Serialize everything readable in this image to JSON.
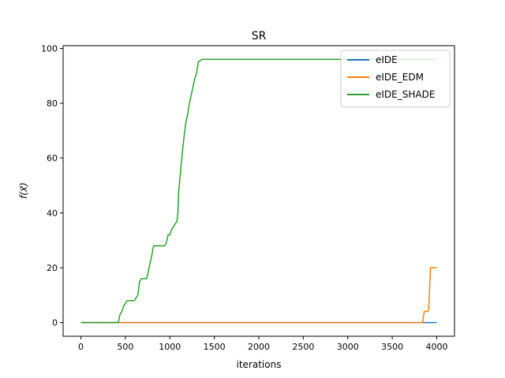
{
  "chart_data": {
    "type": "line",
    "title": "SR",
    "xlabel": "iterations",
    "ylabel": "f(x⃗)",
    "xlim": [
      -200,
      4200
    ],
    "ylim": [
      -5,
      101
    ],
    "xticks": [
      0,
      500,
      1000,
      1500,
      2000,
      2500,
      3000,
      3500,
      4000
    ],
    "yticks": [
      0,
      20,
      40,
      60,
      80,
      100
    ],
    "grid": false,
    "legend_position": "top-right",
    "series": [
      {
        "name": "eIDE",
        "color": "#1f77b4",
        "points": [
          [
            0,
            0
          ],
          [
            4000,
            0
          ]
        ]
      },
      {
        "name": "eIDE_EDM",
        "color": "#ff7f0e",
        "points": [
          [
            0,
            0
          ],
          [
            3840,
            0
          ],
          [
            3860,
            4
          ],
          [
            3900,
            4
          ],
          [
            3910,
            5
          ],
          [
            3930,
            20
          ],
          [
            4000,
            20
          ]
        ]
      },
      {
        "name": "eIDE_SHADE",
        "color": "#2ca02c",
        "points": [
          [
            0,
            0
          ],
          [
            420,
            0
          ],
          [
            440,
            3
          ],
          [
            460,
            4
          ],
          [
            480,
            6
          ],
          [
            500,
            7
          ],
          [
            520,
            8
          ],
          [
            600,
            8
          ],
          [
            620,
            9
          ],
          [
            640,
            10
          ],
          [
            660,
            15
          ],
          [
            680,
            16
          ],
          [
            740,
            16
          ],
          [
            760,
            19
          ],
          [
            780,
            22
          ],
          [
            800,
            25
          ],
          [
            810,
            27
          ],
          [
            820,
            28
          ],
          [
            940,
            28
          ],
          [
            960,
            29
          ],
          [
            980,
            32
          ],
          [
            1000,
            32
          ],
          [
            1020,
            34
          ],
          [
            1040,
            35
          ],
          [
            1060,
            36
          ],
          [
            1080,
            37
          ],
          [
            1090,
            40
          ],
          [
            1100,
            48
          ],
          [
            1120,
            55
          ],
          [
            1140,
            62
          ],
          [
            1160,
            68
          ],
          [
            1180,
            73
          ],
          [
            1200,
            76
          ],
          [
            1220,
            80
          ],
          [
            1240,
            83
          ],
          [
            1260,
            86
          ],
          [
            1280,
            89
          ],
          [
            1300,
            91
          ],
          [
            1320,
            95
          ],
          [
            1360,
            96
          ],
          [
            4000,
            96
          ]
        ]
      }
    ]
  }
}
